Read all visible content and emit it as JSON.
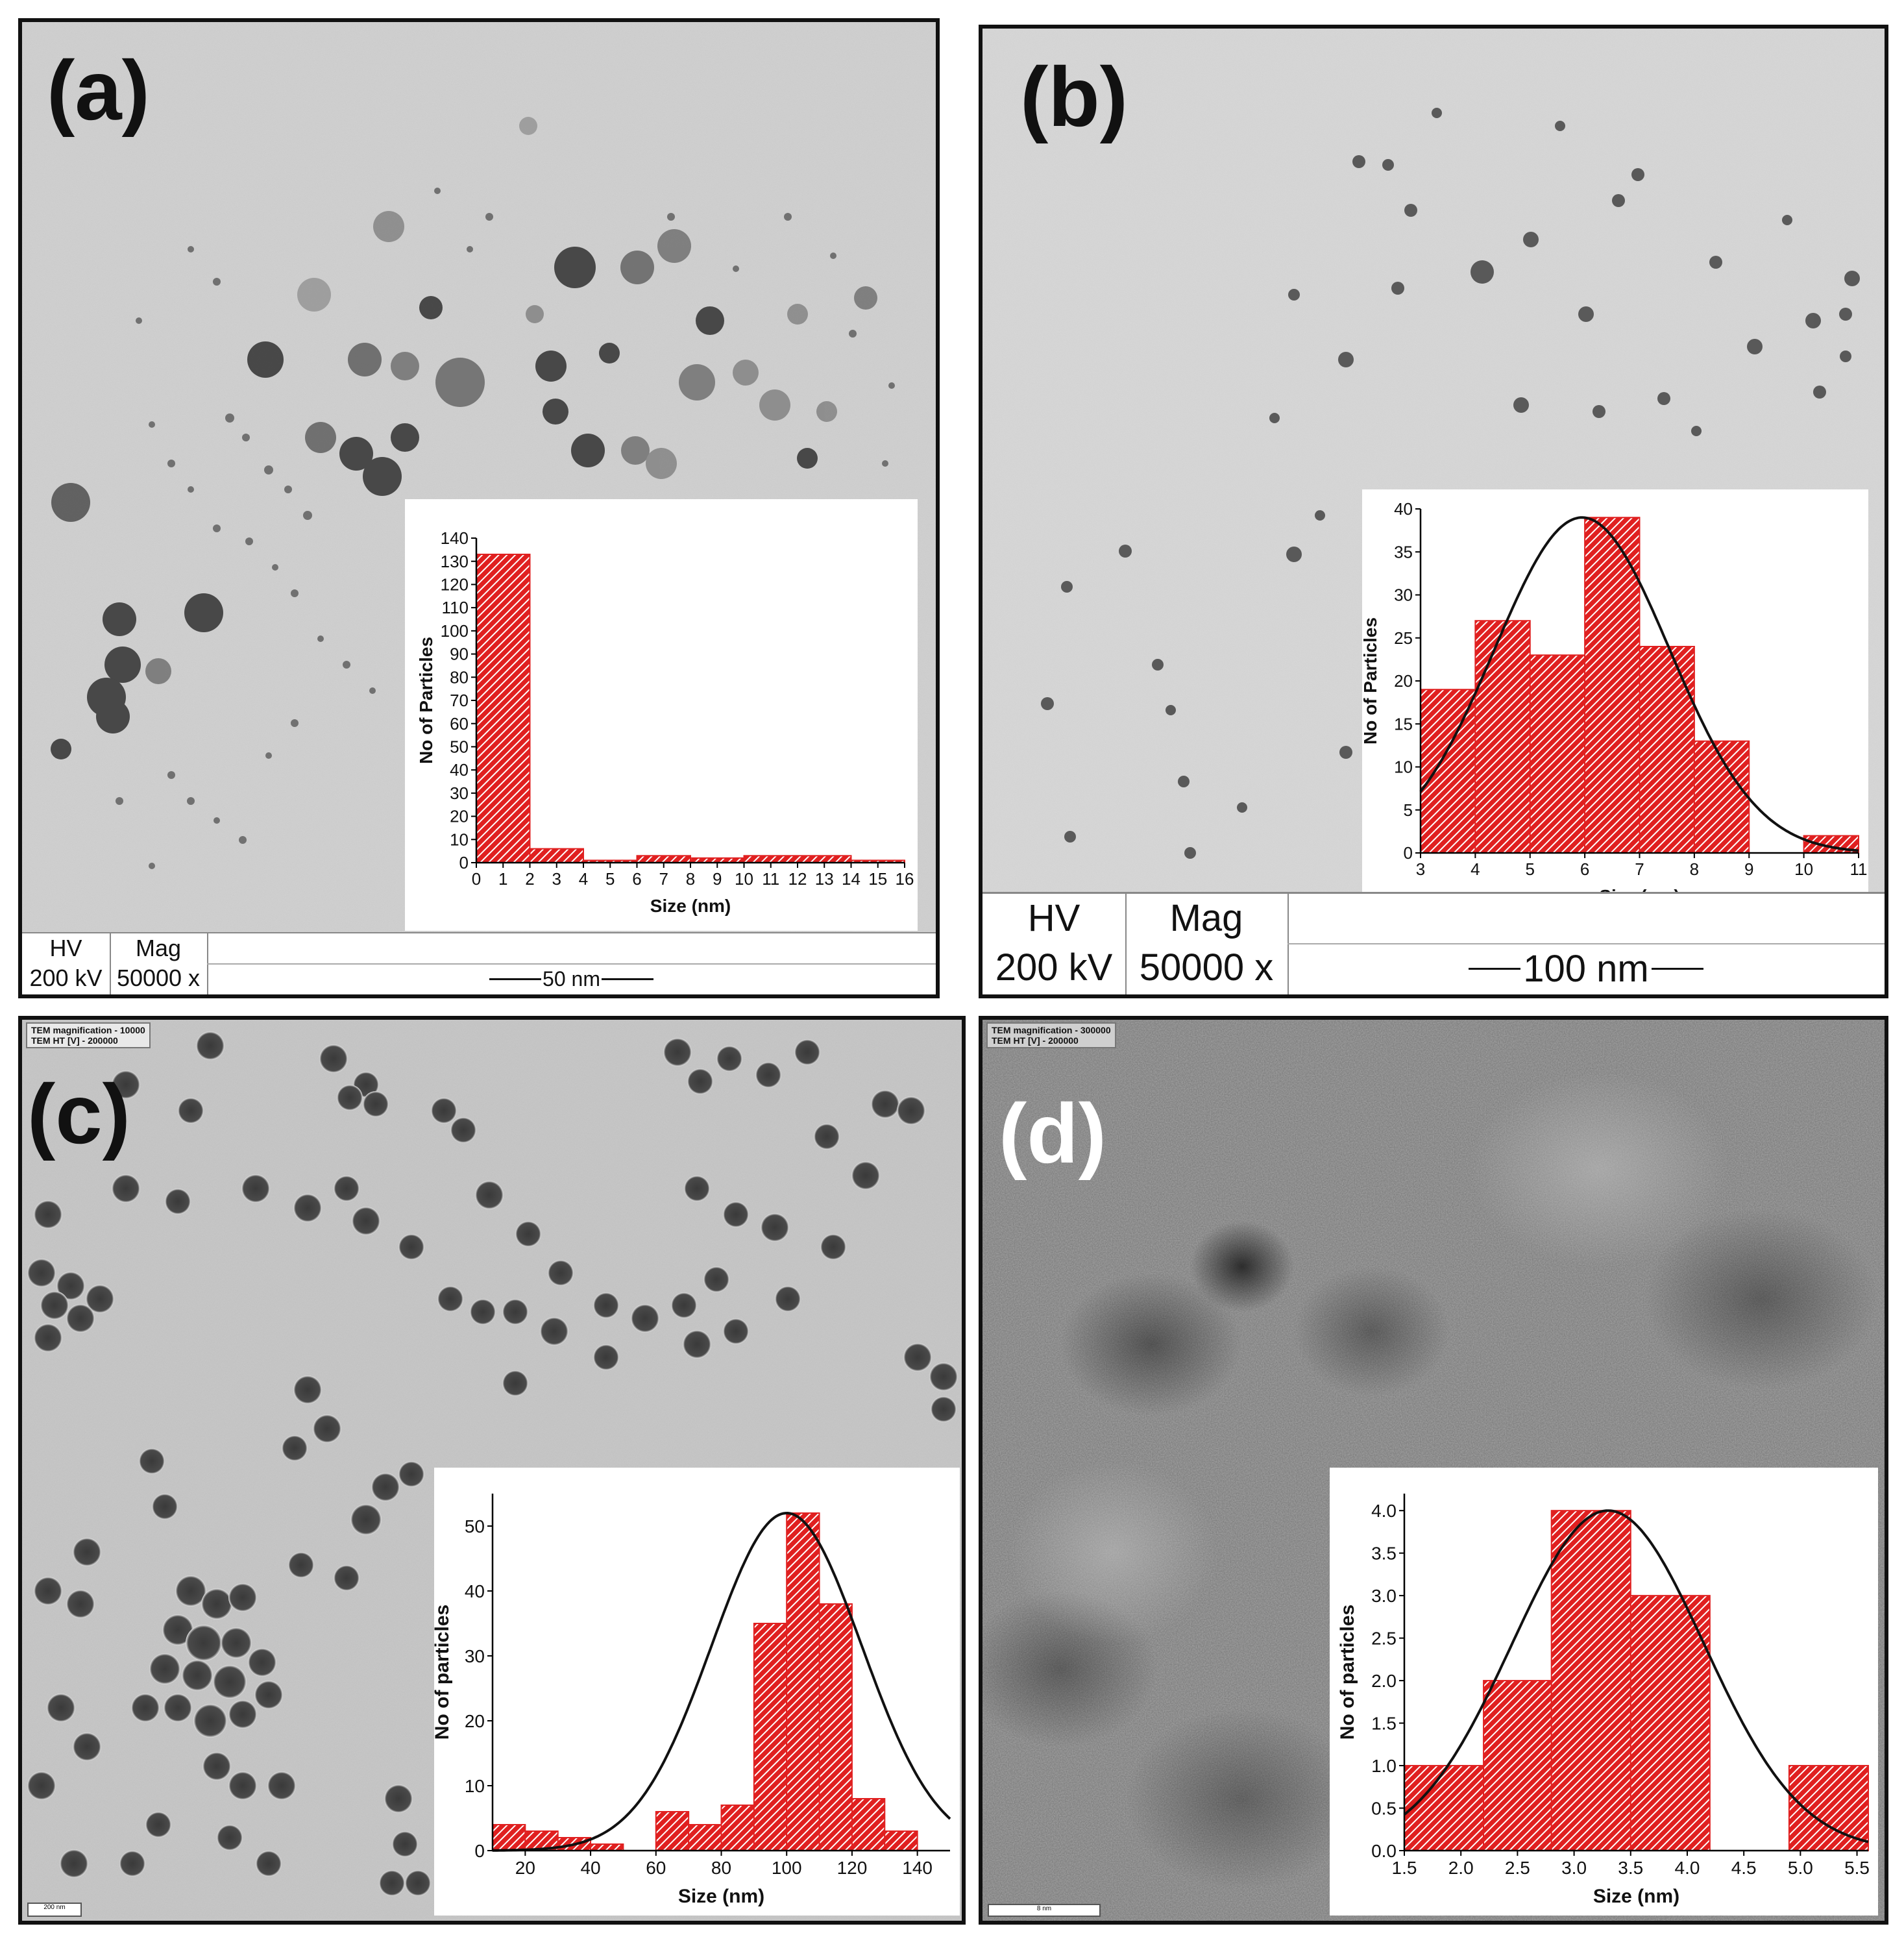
{
  "panels": {
    "a": {
      "label": "(a)",
      "hv_label": "HV",
      "hv_value": "200 kV",
      "mag_label": "Mag",
      "mag_value": "50000 x",
      "scale": "50 nm"
    },
    "b": {
      "label": "(b)",
      "hv_label": "HV",
      "hv_value": "200 kV",
      "mag_label": "Mag",
      "mag_value": "50000 x",
      "scale": "100 nm"
    },
    "c": {
      "label": "(c)",
      "tem_line1": "TEM magnification -  10000",
      "tem_line2": "TEM HT [V] -  200000",
      "scale": "200 nm"
    },
    "d": {
      "label": "(d)",
      "tem_line1": "TEM magnification -  300000",
      "tem_line2": "TEM HT [V] -  200000",
      "scale": "8 nm"
    }
  },
  "colors": {
    "bar_fill": "#e02020",
    "bar_hatch": "#ffffff",
    "curve": "#111111"
  },
  "chart_data": [
    {
      "panel": "a",
      "type": "bar",
      "xlabel": "Size (nm)",
      "ylabel": "No of Particles",
      "xlim": [
        0,
        16
      ],
      "ylim": [
        0,
        140
      ],
      "xticks": [
        0,
        1,
        2,
        3,
        4,
        5,
        6,
        7,
        8,
        9,
        10,
        11,
        12,
        13,
        14,
        15,
        16
      ],
      "yticks": [
        0,
        10,
        20,
        30,
        40,
        50,
        60,
        70,
        80,
        90,
        100,
        110,
        120,
        130,
        140
      ],
      "bins": [
        [
          0,
          2,
          133
        ],
        [
          2,
          4,
          6
        ],
        [
          4,
          6,
          1
        ],
        [
          6,
          8,
          3
        ],
        [
          8,
          10,
          2
        ],
        [
          10,
          14,
          3
        ],
        [
          14,
          16,
          1
        ]
      ],
      "curve": null
    },
    {
      "panel": "b",
      "type": "bar",
      "xlabel": "Size (nm)",
      "ylabel": "No of Particles",
      "xlim": [
        3,
        11
      ],
      "ylim": [
        0,
        40
      ],
      "xticks": [
        3,
        4,
        5,
        6,
        7,
        8,
        9,
        10,
        11
      ],
      "yticks": [
        0,
        5,
        10,
        15,
        20,
        25,
        30,
        35,
        40
      ],
      "bins": [
        [
          3,
          4,
          19
        ],
        [
          4,
          5,
          27
        ],
        [
          5,
          6,
          23
        ],
        [
          6,
          7,
          39
        ],
        [
          7,
          8,
          24
        ],
        [
          8,
          9,
          13
        ],
        [
          10,
          11,
          2
        ]
      ],
      "curve": {
        "mean": 5.95,
        "sd": 1.6,
        "peak": 39
      }
    },
    {
      "panel": "c",
      "type": "bar",
      "xlabel": "Size (nm)",
      "ylabel": "No of particles",
      "xlim": [
        10,
        150
      ],
      "ylim": [
        0,
        55
      ],
      "xticks": [
        20,
        40,
        60,
        80,
        100,
        120,
        140
      ],
      "yticks": [
        0,
        10,
        20,
        30,
        40,
        50
      ],
      "bins": [
        [
          10,
          20,
          4
        ],
        [
          20,
          30,
          3
        ],
        [
          30,
          40,
          2
        ],
        [
          40,
          50,
          1
        ],
        [
          60,
          70,
          6
        ],
        [
          70,
          80,
          4
        ],
        [
          80,
          90,
          7
        ],
        [
          90,
          100,
          35
        ],
        [
          100,
          110,
          52
        ],
        [
          110,
          120,
          38
        ],
        [
          120,
          130,
          8
        ],
        [
          130,
          140,
          3
        ]
      ],
      "curve": {
        "mean": 100,
        "sd": 23,
        "peak": 52
      }
    },
    {
      "panel": "d",
      "type": "bar",
      "xlabel": "Size (nm)",
      "ylabel": "No of particles",
      "xlim": [
        1.5,
        5.6
      ],
      "ylim": [
        0,
        4.2
      ],
      "xticks": [
        1.5,
        2.0,
        2.5,
        3.0,
        3.5,
        4.0,
        4.5,
        5.0,
        5.5
      ],
      "yticks": [
        0.0,
        0.5,
        1.0,
        1.5,
        2.0,
        2.5,
        3.0,
        3.5,
        4.0
      ],
      "bins": [
        [
          1.5,
          2.2,
          1
        ],
        [
          2.2,
          2.8,
          2
        ],
        [
          2.8,
          3.5,
          4
        ],
        [
          3.5,
          4.2,
          3
        ],
        [
          4.9,
          5.6,
          1
        ]
      ],
      "curve": {
        "mean": 3.3,
        "sd": 0.85,
        "peak": 4
      }
    }
  ]
}
